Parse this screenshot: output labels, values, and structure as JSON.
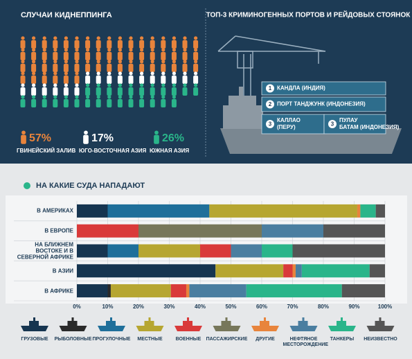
{
  "kidnapping": {
    "title": "СЛУЧАИ КИДНЕППИНГА",
    "groups": [
      {
        "name": "ГВИНЕЙСКИЙ ЗАЛИВ",
        "value": 57,
        "value_label": "57%",
        "color": "#e8843c"
      },
      {
        "name": "ЮГО-ВОСТОЧНАЯ АЗИЯ",
        "value": 17,
        "value_label": "17%",
        "color": "#ffffff"
      },
      {
        "name": "ЮЖНАЯ АЗИЯ",
        "value": 26,
        "value_label": "26%",
        "color": "#2ab58a"
      }
    ]
  },
  "ports": {
    "title": "ТОП-3 КРИМИНОГЕННЫХ ПОРТОВ И РЕЙДОВЫХ СТОЯНОК",
    "items": [
      {
        "rank": "1",
        "name": "КАНДЛА (ИНДИЯ)"
      },
      {
        "rank": "2",
        "name": "ПОРТ ТАНДЖУНК (ИНДОНЕЗИЯ)"
      },
      {
        "rank": "3",
        "name": "КАЛЛАО (ПЕРУ)"
      },
      {
        "rank": "3",
        "name": "ПУЛАУ БАТАМ (ИНДОНЕЗИЯ)"
      }
    ]
  },
  "chart_data": {
    "type": "bar",
    "orientation": "horizontal",
    "stacked": true,
    "title": "НА КАКИЕ СУДА НАПАДАЮТ",
    "categories": [
      "В АМЕРИКАХ",
      "В ЕВРОПЕ",
      "НА БЛИЖНЕМ ВОСТОКЕ И В СЕВЕРНОЙ АФРИКЕ",
      "В АЗИИ",
      "В АФРИКЕ"
    ],
    "series": [
      {
        "name": "ГРУЗОВЫЕ",
        "color": "#163550",
        "values": [
          10,
          0,
          10,
          45,
          10
        ]
      },
      {
        "name": "РЫБОЛОВНЫЕ",
        "color": "#2a2a2a",
        "values": [
          0,
          0,
          0,
          0,
          1
        ]
      },
      {
        "name": "ПРОГУЛОЧНЫЕ",
        "color": "#1f6f9a",
        "values": [
          33,
          0,
          10,
          0,
          0
        ]
      },
      {
        "name": "МЕСТНЫЕ",
        "color": "#b6a631",
        "values": [
          48,
          0,
          20,
          22,
          19.5
        ]
      },
      {
        "name": "ВОЕННЫЕ",
        "color": "#d93a3a",
        "values": [
          0,
          20,
          10,
          3,
          5
        ]
      },
      {
        "name": "ПАССАЖИРСКИЕ",
        "color": "#77775a",
        "values": [
          0,
          40,
          0,
          0,
          0
        ]
      },
      {
        "name": "ДРУГИЕ",
        "color": "#e8843c",
        "values": [
          1,
          0,
          0,
          1,
          1
        ]
      },
      {
        "name": "НЕФТЯНОЕ МЕСТОРОЖДЕНИЕ",
        "color": "#4a7ea0",
        "values": [
          0,
          20,
          10,
          2,
          18.5
        ]
      },
      {
        "name": "ТАНКЕРЫ",
        "color": "#2ab58a",
        "values": [
          5,
          0,
          10,
          22,
          31
        ]
      },
      {
        "name": "НЕИЗВЕСТНО",
        "color": "#555555",
        "values": [
          3,
          20,
          30,
          5,
          14
        ]
      }
    ],
    "xlim": [
      0,
      100
    ],
    "xticks": [
      {
        "value": 0,
        "label": "0%"
      },
      {
        "value": 10,
        "label": "10%"
      },
      {
        "value": 20,
        "label": "20%"
      },
      {
        "value": 30,
        "label": "30%"
      },
      {
        "value": 40,
        "label": "40%"
      },
      {
        "value": 50,
        "label": "50%"
      },
      {
        "value": 60,
        "label": "60%"
      },
      {
        "value": 70,
        "label": "70%"
      },
      {
        "value": 80,
        "label": "80%"
      },
      {
        "value": 90,
        "label": "90%"
      },
      {
        "value": 100,
        "label": "100%"
      }
    ],
    "grid": true
  }
}
